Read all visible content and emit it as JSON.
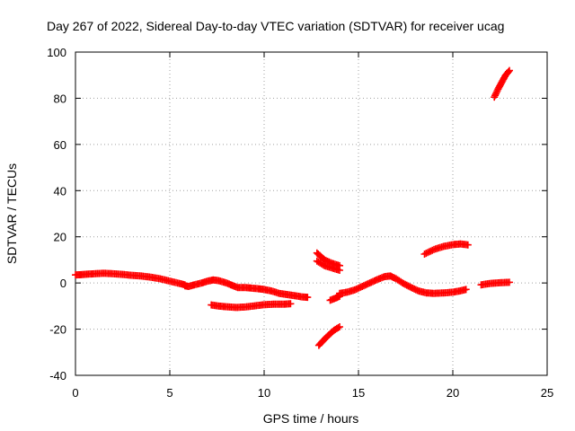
{
  "chart_data": {
    "type": "scatter",
    "title": "Day 267 of 2022, Sidereal Day-to-day VTEC variation (SDTVAR) for receiver ucag",
    "xlabel": "GPS time / hours",
    "ylabel": "SDTVAR / TECUs",
    "xlim": [
      0,
      25
    ],
    "ylim": [
      -40,
      100
    ],
    "x_ticks": [
      "0",
      "5",
      "10",
      "15",
      "20",
      "25"
    ],
    "y_ticks": [
      "-40",
      "-20",
      "0",
      "20",
      "40",
      "60",
      "80",
      "100"
    ],
    "grid": true,
    "legend": "none",
    "marker": "+",
    "color": "#ff0000",
    "series": [
      {
        "points": [
          [
            0.0,
            3.5
          ],
          [
            0.3,
            3.6
          ],
          [
            0.6,
            3.8
          ],
          [
            1.0,
            4.0
          ],
          [
            1.5,
            4.2
          ],
          [
            2.0,
            4.0
          ],
          [
            2.5,
            3.7
          ],
          [
            3.0,
            3.3
          ],
          [
            3.5,
            3.0
          ],
          [
            4.0,
            2.5
          ],
          [
            4.5,
            1.8
          ],
          [
            5.0,
            0.8
          ],
          [
            5.5,
            -0.2
          ],
          [
            5.8,
            -0.8
          ]
        ]
      },
      {
        "points": [
          [
            5.8,
            -1.2
          ],
          [
            6.0,
            -1.5
          ],
          [
            6.3,
            -0.8
          ],
          [
            6.7,
            0.0
          ],
          [
            7.0,
            0.8
          ],
          [
            7.3,
            1.3
          ],
          [
            7.6,
            1.0
          ],
          [
            8.0,
            0.0
          ],
          [
            8.3,
            -1.0
          ],
          [
            8.6,
            -2.0
          ],
          [
            9.0,
            -2.0
          ],
          [
            9.3,
            -2.2
          ],
          [
            9.7,
            -2.5
          ],
          [
            10.0,
            -2.8
          ],
          [
            10.4,
            -3.5
          ],
          [
            10.8,
            -4.5
          ],
          [
            11.2,
            -5.0
          ],
          [
            11.6,
            -5.5
          ],
          [
            12.0,
            -6.0
          ],
          [
            12.3,
            -6.2
          ]
        ]
      },
      {
        "points": [
          [
            7.2,
            -9.5
          ],
          [
            7.6,
            -10.0
          ],
          [
            8.0,
            -10.3
          ],
          [
            8.5,
            -10.6
          ],
          [
            9.0,
            -10.4
          ],
          [
            9.5,
            -9.9
          ],
          [
            10.0,
            -9.4
          ],
          [
            10.5,
            -9.2
          ],
          [
            11.0,
            -9.2
          ],
          [
            11.4,
            -9.0
          ]
        ]
      },
      {
        "points": [
          [
            12.8,
            13.0
          ],
          [
            13.2,
            10.0
          ],
          [
            13.6,
            8.5
          ],
          [
            14.0,
            7.5
          ]
        ]
      },
      {
        "points": [
          [
            12.8,
            9.5
          ],
          [
            13.2,
            7.5
          ],
          [
            13.6,
            6.5
          ],
          [
            14.0,
            5.5
          ]
        ]
      },
      {
        "points": [
          [
            12.9,
            -27.0
          ],
          [
            13.3,
            -23.5
          ],
          [
            13.7,
            -20.5
          ],
          [
            14.0,
            -19.0
          ]
        ]
      },
      {
        "points": [
          [
            13.5,
            -7.5
          ],
          [
            13.8,
            -6.5
          ],
          [
            14.0,
            -5.8
          ]
        ]
      },
      {
        "points": [
          [
            14.0,
            -4.5
          ],
          [
            14.4,
            -4.0
          ],
          [
            14.8,
            -3.0
          ],
          [
            15.2,
            -1.5
          ],
          [
            15.6,
            0.0
          ],
          [
            16.0,
            1.5
          ],
          [
            16.4,
            2.8
          ],
          [
            16.7,
            3.0
          ],
          [
            17.0,
            1.8
          ],
          [
            17.4,
            -0.3
          ],
          [
            17.8,
            -2.0
          ],
          [
            18.2,
            -3.5
          ],
          [
            18.6,
            -4.3
          ],
          [
            19.0,
            -4.5
          ],
          [
            19.5,
            -4.3
          ],
          [
            20.0,
            -4.0
          ],
          [
            20.4,
            -3.4
          ],
          [
            20.7,
            -2.8
          ]
        ]
      },
      {
        "points": [
          [
            18.5,
            12.5
          ],
          [
            19.0,
            14.5
          ],
          [
            19.5,
            15.8
          ],
          [
            20.0,
            16.6
          ],
          [
            20.4,
            16.9
          ],
          [
            20.8,
            16.5
          ]
        ]
      },
      {
        "points": [
          [
            21.5,
            -0.8
          ],
          [
            22.0,
            -0.2
          ],
          [
            22.5,
            0.1
          ],
          [
            23.0,
            0.3
          ]
        ]
      },
      {
        "points": [
          [
            22.2,
            80.5
          ],
          [
            22.4,
            84.0
          ],
          [
            22.6,
            87.0
          ],
          [
            22.8,
            90.0
          ],
          [
            23.0,
            92.0
          ]
        ]
      }
    ]
  }
}
